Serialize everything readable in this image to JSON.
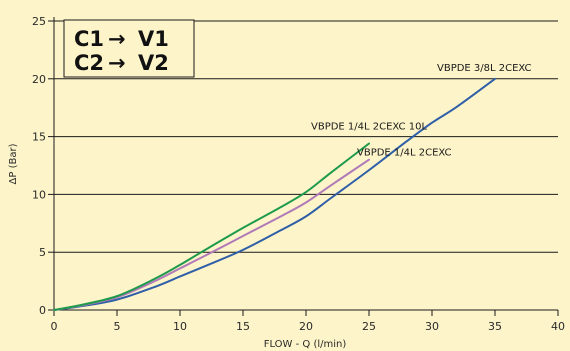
{
  "colors": {
    "background": "#fdf4c9",
    "plot_background": "#fdf4c9",
    "grid": "#1a1a1a",
    "axis": "#1a1a1a",
    "series_green": "#1e9a4c",
    "series_purple": "#b07ab8",
    "series_blue": "#2f5fa8"
  },
  "legend_box": {
    "line1": "C1",
    "line2": "C2",
    "arrow": "→",
    "target1": "V1",
    "target2": "V2"
  },
  "chart_data": {
    "type": "line",
    "title": "",
    "xlabel": "FLOW - Q (l/min)",
    "ylabel": "ΔP (Bar)",
    "xlim": [
      0,
      40
    ],
    "ylim": [
      0,
      25
    ],
    "xticks": [
      0,
      5,
      10,
      15,
      20,
      25,
      30,
      35,
      40
    ],
    "yticks": [
      0,
      5,
      10,
      15,
      20,
      25
    ],
    "grid": "horizontal",
    "series": [
      {
        "name": "VBPDE 1/4L 2CEXC 10L",
        "color_key": "series_green",
        "x": [
          0,
          2,
          5,
          8,
          10,
          12,
          15,
          18,
          20,
          22,
          25
        ],
        "y": [
          0,
          0.4,
          1.2,
          2.7,
          3.9,
          5.2,
          7.1,
          8.9,
          10.2,
          11.9,
          14.4
        ]
      },
      {
        "name": "VBPDE 1/4L 2CEXC",
        "color_key": "series_purple",
        "x": [
          0,
          2,
          5,
          8,
          10,
          12,
          15,
          18,
          20,
          22,
          25
        ],
        "y": [
          0,
          0.35,
          1.1,
          2.5,
          3.6,
          4.7,
          6.4,
          8.1,
          9.3,
          10.8,
          13.0
        ]
      },
      {
        "name": "VBPDE 3/8L 2CEXC",
        "color_key": "series_blue",
        "x": [
          0,
          2,
          5,
          8,
          10,
          12,
          15,
          18,
          20,
          22,
          25,
          28,
          30,
          32,
          35
        ],
        "y": [
          0,
          0.3,
          0.9,
          2.0,
          2.9,
          3.8,
          5.2,
          6.9,
          8.1,
          9.7,
          12.1,
          14.6,
          16.2,
          17.6,
          20.0
        ]
      }
    ]
  }
}
